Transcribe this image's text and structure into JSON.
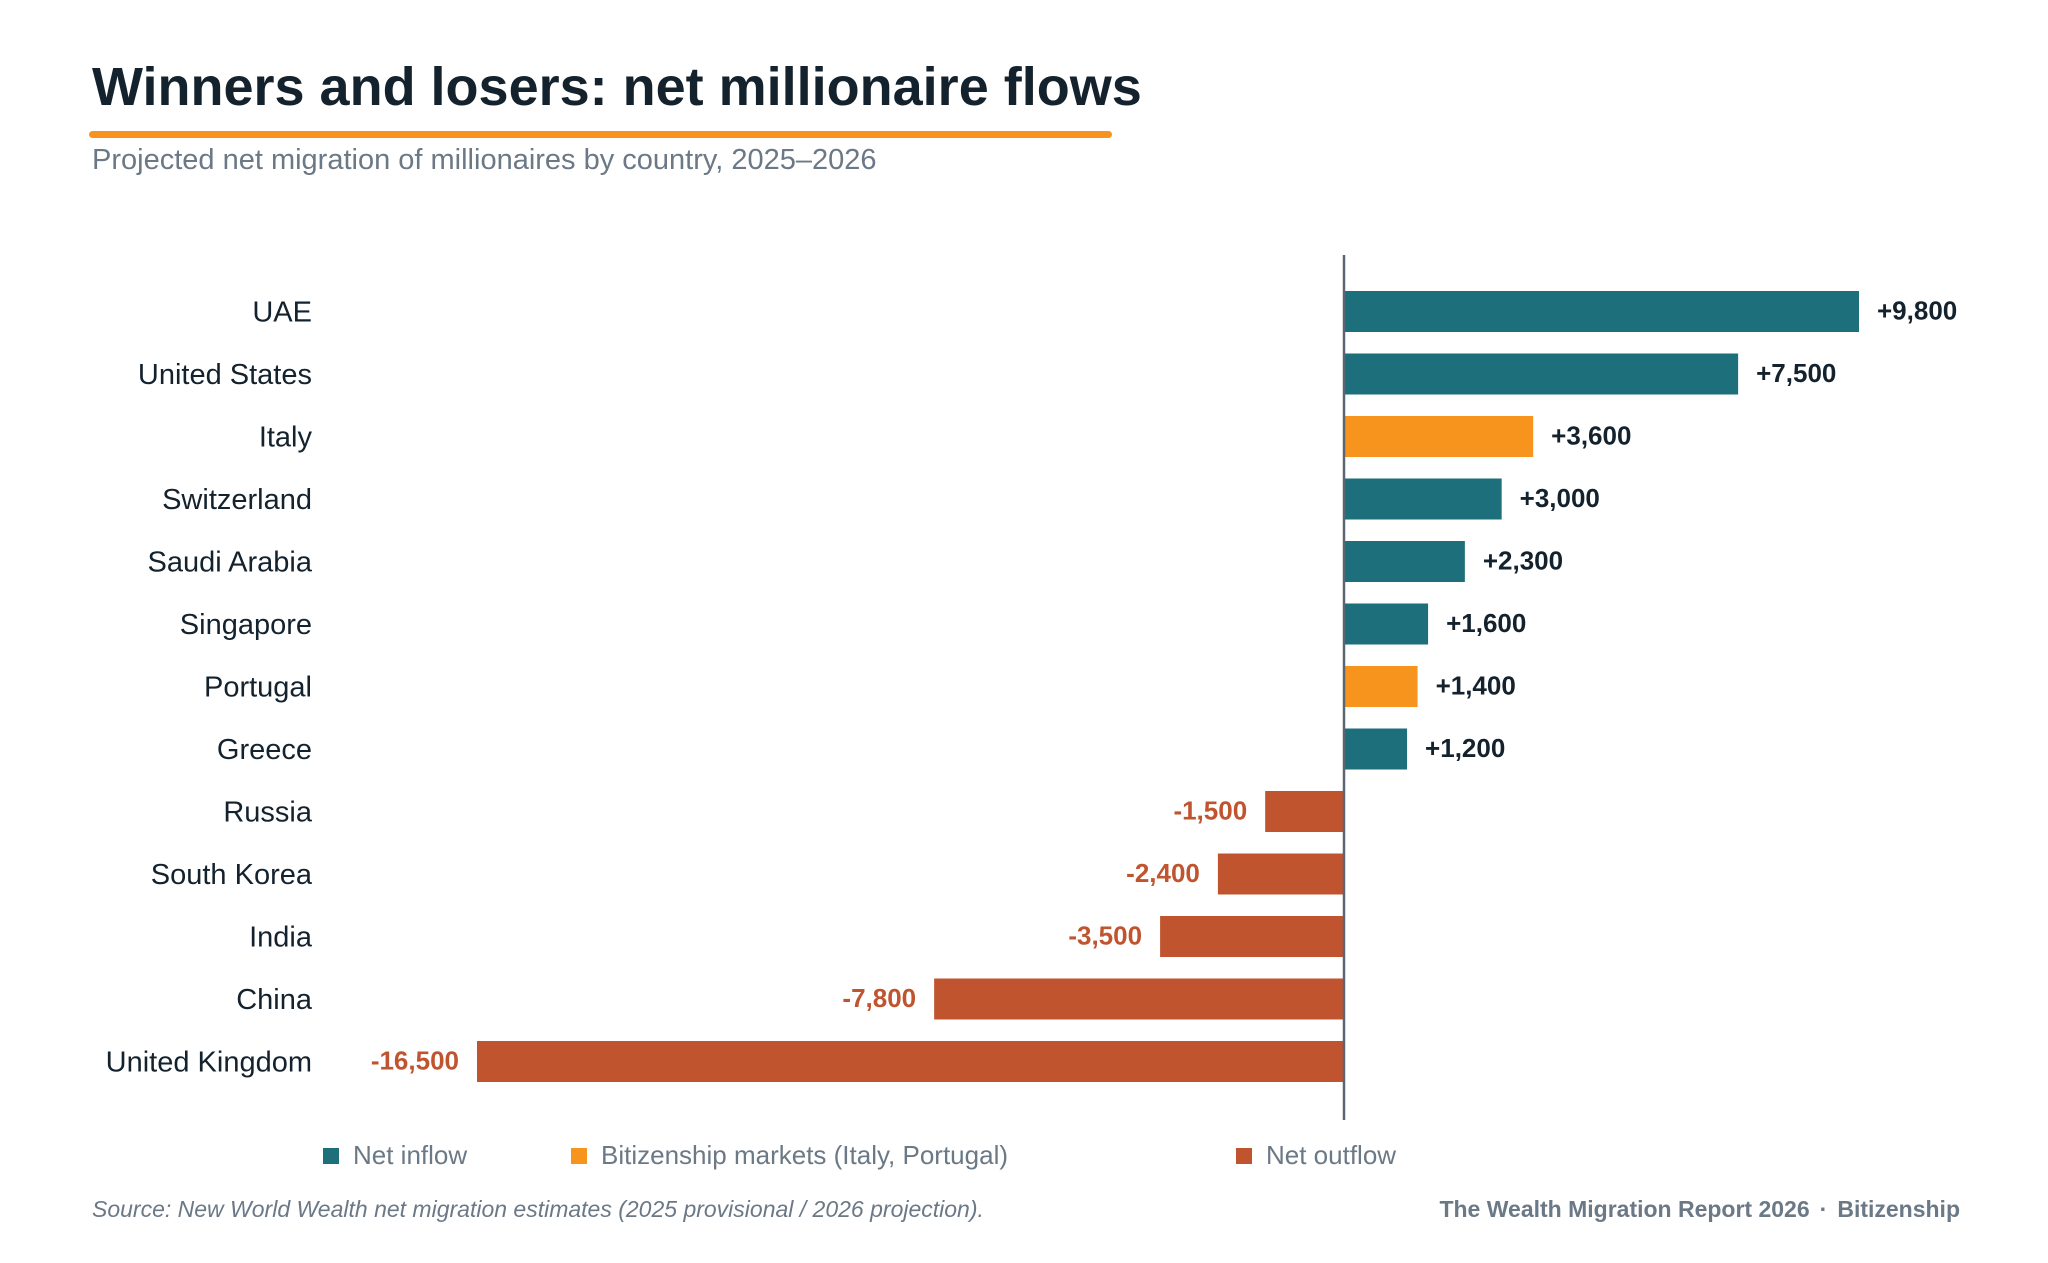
{
  "header": {
    "title": "Winners and losers: net millionaire flows",
    "subtitle": "Projected net migration of millionaires by country, 2025–2026"
  },
  "colors": {
    "inflow": "#1c6f7b",
    "bitizenship": "#f7941d",
    "outflow": "#c0542f",
    "axis": "#5a6673",
    "title_rule": "#f7941d",
    "text_dark": "#14222e",
    "text_muted": "#6b7886"
  },
  "chart_data": {
    "type": "bar",
    "orientation": "horizontal",
    "title": "Winners and losers: net millionaire flows",
    "subtitle": "Projected net migration of millionaires by country, 2025–2026",
    "categories": [
      "UAE",
      "United States",
      "Italy",
      "Switzerland",
      "Saudi Arabia",
      "Singapore",
      "Portugal",
      "Greece",
      "Russia",
      "South Korea",
      "India",
      "China",
      "United Kingdom"
    ],
    "values": [
      9800,
      7500,
      3600,
      3000,
      2300,
      1600,
      1400,
      1200,
      -1500,
      -2400,
      -3500,
      -7800,
      -16500
    ],
    "value_labels": [
      "+9,800",
      "+7,500",
      "+3,600",
      "+3,000",
      "+2,300",
      "+1,600",
      "+1,400",
      "+1,200",
      "-1,500",
      "-2,400",
      "-3,500",
      "-7,800",
      "-16,500"
    ],
    "groups": [
      "inflow",
      "inflow",
      "bitizenship",
      "inflow",
      "inflow",
      "inflow",
      "bitizenship",
      "inflow",
      "outflow",
      "outflow",
      "outflow",
      "outflow",
      "outflow"
    ],
    "xlim": [
      -16500,
      9800
    ],
    "xlabel": "",
    "ylabel": "",
    "grid": false,
    "legend_position": "bottom"
  },
  "legend": {
    "items": [
      {
        "label": "Net inflow",
        "group": "inflow"
      },
      {
        "label": "Bitizenship markets (Italy, Portugal)",
        "group": "bitizenship"
      },
      {
        "label": "Net outflow",
        "group": "outflow"
      }
    ]
  },
  "footer": {
    "source": "Source: New World Wealth net migration estimates (2025 provisional / 2026 projection).",
    "brand": "The Wealth Migration Report 2026",
    "separator": "·",
    "company": "Bitizenship"
  }
}
